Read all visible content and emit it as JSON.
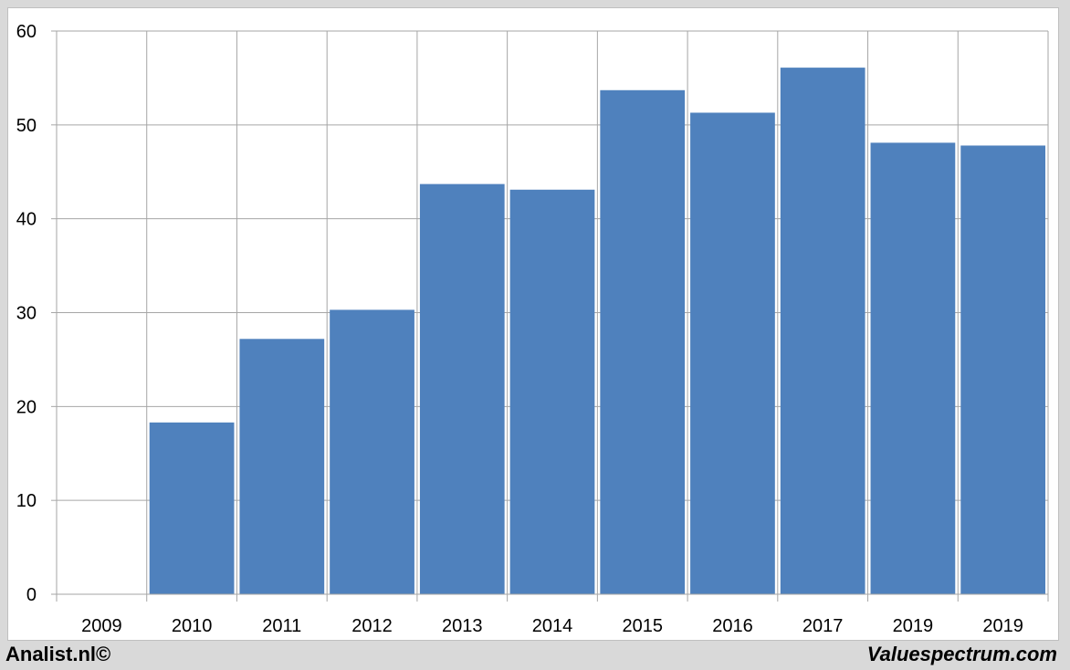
{
  "footer": {
    "left_text": "Analist.nl©",
    "right_text": "Valuespectrum.com"
  },
  "colors": {
    "bar": "#4f81bd",
    "grid": "#a6a6a6",
    "background": "#ffffff",
    "frame": "#d9d9d9"
  },
  "chart_data": {
    "type": "bar",
    "title": "",
    "xlabel": "",
    "ylabel": "",
    "categories": [
      "2009",
      "2010",
      "2011",
      "2012",
      "2013",
      "2014",
      "2015",
      "2016",
      "2017",
      "2019",
      "2019"
    ],
    "values": [
      0,
      18.3,
      27.2,
      30.3,
      43.7,
      43.1,
      53.7,
      51.3,
      56.1,
      48.1,
      47.8
    ],
    "ylim": [
      0,
      60
    ],
    "yticks": [
      0,
      10,
      20,
      30,
      40,
      50,
      60
    ],
    "grid": true,
    "legend": "none"
  }
}
